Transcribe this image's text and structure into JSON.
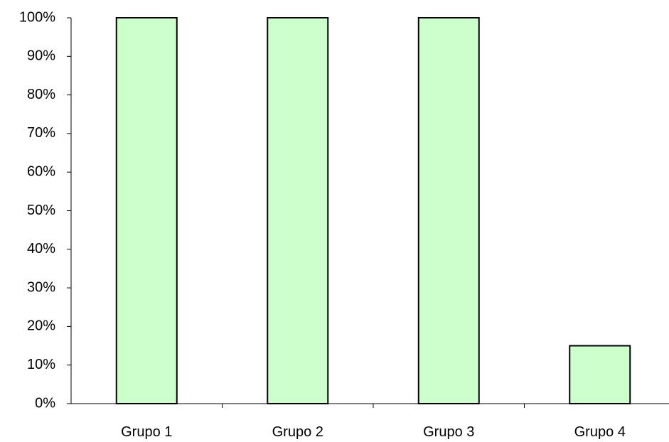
{
  "chart_data": {
    "type": "bar",
    "title": "",
    "xlabel": "",
    "ylabel": "",
    "categories": [
      "Grupo 1",
      "Grupo 2",
      "Grupo 3",
      "Grupo 4"
    ],
    "values": [
      100,
      100,
      100,
      15
    ],
    "ylim": [
      0,
      100
    ],
    "yticks": [
      0,
      10,
      20,
      30,
      40,
      50,
      60,
      70,
      80,
      90,
      100
    ],
    "ytick_suffix": "%",
    "grid": false,
    "legend": "none",
    "bar_color": "#ccffcc",
    "bar_edge_color": "#000000"
  }
}
